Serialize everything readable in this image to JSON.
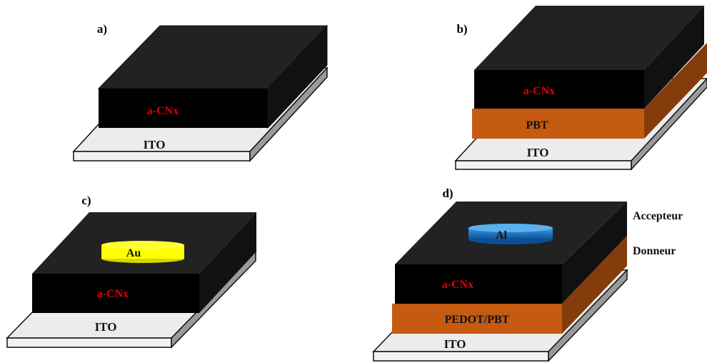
{
  "panels": [
    {
      "id": "a",
      "label": "a)",
      "layers": [
        {
          "name": "substrate",
          "text": "ITO",
          "color": "#f0f0f0",
          "textColor": "#111111"
        },
        {
          "name": "film",
          "text": "a-CNx",
          "color": "#000000",
          "textColor": "#e00000"
        }
      ]
    },
    {
      "id": "b",
      "label": "b)",
      "layers": [
        {
          "name": "substrate",
          "text": "ITO",
          "color": "#f0f0f0",
          "textColor": "#111111"
        },
        {
          "name": "polymer",
          "text": "PBT",
          "color": "#c55a11",
          "textColor": "#111111"
        },
        {
          "name": "film",
          "text": "a-CNx",
          "color": "#000000",
          "textColor": "#e00000"
        }
      ]
    },
    {
      "id": "c",
      "label": "c)",
      "layers": [
        {
          "name": "substrate",
          "text": "ITO",
          "color": "#f0f0f0",
          "textColor": "#111111"
        },
        {
          "name": "film",
          "text": "a-CNx",
          "color": "#000000",
          "textColor": "#e00000"
        }
      ],
      "contact": {
        "text": "Au",
        "color": "#ffff00"
      }
    },
    {
      "id": "d",
      "label": "d)",
      "layers": [
        {
          "name": "substrate",
          "text": "ITO",
          "color": "#f0f0f0",
          "textColor": "#111111"
        },
        {
          "name": "polymer",
          "text": "PEDOT/PBT",
          "color": "#c55a11",
          "textColor": "#111111"
        },
        {
          "name": "film",
          "text": "a-CNx",
          "color": "#000000",
          "textColor": "#e00000"
        }
      ],
      "contact": {
        "text": "Al",
        "color": "#0070c0"
      },
      "side_labels": [
        "Accepteur",
        "Donneur"
      ]
    }
  ]
}
